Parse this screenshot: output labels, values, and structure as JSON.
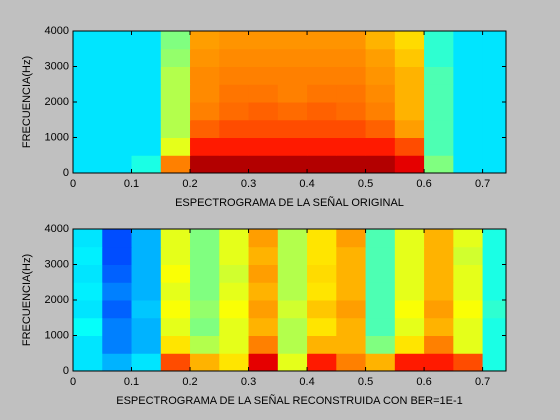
{
  "chart_data": [
    {
      "type": "heatmap",
      "xlabel": "ESPECTROGRAMA DE LA SEÑAL ORIGINAL",
      "ylabel": "FRECUENCIA(Hz)",
      "colormap": "jet",
      "clim": [
        0,
        1
      ],
      "xbins": [
        0,
        0.05,
        0.1,
        0.15,
        0.2,
        0.25,
        0.3,
        0.35,
        0.4,
        0.45,
        0.5,
        0.55,
        0.6,
        0.65,
        0.7,
        0.74
      ],
      "ybins": [
        0,
        500,
        1000,
        1500,
        2000,
        2500,
        3000,
        3500,
        4000
      ],
      "values": [
        [
          0.35,
          0.35,
          0.4,
          0.75,
          0.95,
          0.95,
          0.95,
          0.95,
          0.95,
          0.95,
          0.95,
          0.9,
          0.5,
          0.35,
          0.35
        ],
        [
          0.35,
          0.35,
          0.35,
          0.6,
          0.85,
          0.85,
          0.85,
          0.85,
          0.85,
          0.85,
          0.85,
          0.8,
          0.45,
          0.35,
          0.35
        ],
        [
          0.35,
          0.35,
          0.35,
          0.55,
          0.78,
          0.8,
          0.8,
          0.8,
          0.8,
          0.8,
          0.78,
          0.72,
          0.45,
          0.35,
          0.35
        ],
        [
          0.35,
          0.35,
          0.35,
          0.55,
          0.75,
          0.77,
          0.78,
          0.77,
          0.78,
          0.77,
          0.75,
          0.7,
          0.45,
          0.35,
          0.35
        ],
        [
          0.35,
          0.35,
          0.35,
          0.55,
          0.74,
          0.76,
          0.76,
          0.75,
          0.76,
          0.76,
          0.74,
          0.7,
          0.45,
          0.35,
          0.35
        ],
        [
          0.35,
          0.35,
          0.35,
          0.55,
          0.74,
          0.75,
          0.75,
          0.75,
          0.75,
          0.75,
          0.73,
          0.7,
          0.45,
          0.35,
          0.35
        ],
        [
          0.35,
          0.35,
          0.35,
          0.52,
          0.73,
          0.74,
          0.74,
          0.74,
          0.74,
          0.74,
          0.72,
          0.68,
          0.42,
          0.35,
          0.35
        ],
        [
          0.35,
          0.35,
          0.35,
          0.5,
          0.72,
          0.73,
          0.73,
          0.73,
          0.73,
          0.73,
          0.7,
          0.66,
          0.42,
          0.35,
          0.35
        ]
      ],
      "xlim": [
        0,
        0.74
      ],
      "ylim": [
        0,
        4000
      ],
      "xticks": [
        0,
        0.1,
        0.2,
        0.3,
        0.4,
        0.5,
        0.6,
        0.7
      ],
      "yticks": [
        0,
        1000,
        2000,
        3000,
        4000
      ]
    },
    {
      "type": "heatmap",
      "xlabel": "ESPECTROGRAMA DE LA SEÑAL RECONSTRUIDA CON BER=1E-1",
      "ylabel": "FRECUENCIA(Hz)",
      "colormap": "jet",
      "clim": [
        0,
        1
      ],
      "xbins": [
        0,
        0.05,
        0.1,
        0.15,
        0.2,
        0.25,
        0.3,
        0.35,
        0.4,
        0.45,
        0.5,
        0.55,
        0.6,
        0.65,
        0.7,
        0.74
      ],
      "ybins": [
        0,
        500,
        1000,
        1500,
        2000,
        2500,
        3000,
        3500,
        4000
      ],
      "values": [
        [
          0.35,
          0.3,
          0.35,
          0.8,
          0.7,
          0.65,
          0.9,
          0.6,
          0.85,
          0.75,
          0.7,
          0.85,
          0.85,
          0.8,
          0.4
        ],
        [
          0.35,
          0.25,
          0.3,
          0.65,
          0.55,
          0.6,
          0.75,
          0.55,
          0.7,
          0.7,
          0.5,
          0.65,
          0.75,
          0.6,
          0.4
        ],
        [
          0.38,
          0.25,
          0.3,
          0.6,
          0.5,
          0.6,
          0.7,
          0.55,
          0.65,
          0.7,
          0.45,
          0.6,
          0.7,
          0.6,
          0.4
        ],
        [
          0.35,
          0.22,
          0.32,
          0.62,
          0.52,
          0.62,
          0.72,
          0.58,
          0.68,
          0.72,
          0.45,
          0.62,
          0.72,
          0.62,
          0.42
        ],
        [
          0.36,
          0.25,
          0.3,
          0.6,
          0.5,
          0.6,
          0.7,
          0.55,
          0.65,
          0.7,
          0.45,
          0.6,
          0.7,
          0.6,
          0.4
        ],
        [
          0.35,
          0.22,
          0.3,
          0.62,
          0.5,
          0.58,
          0.72,
          0.55,
          0.66,
          0.7,
          0.45,
          0.6,
          0.7,
          0.6,
          0.4
        ],
        [
          0.36,
          0.2,
          0.3,
          0.6,
          0.5,
          0.6,
          0.7,
          0.55,
          0.65,
          0.7,
          0.45,
          0.6,
          0.7,
          0.58,
          0.4
        ],
        [
          0.35,
          0.2,
          0.3,
          0.6,
          0.5,
          0.6,
          0.72,
          0.55,
          0.65,
          0.72,
          0.45,
          0.6,
          0.7,
          0.6,
          0.4
        ]
      ],
      "xlim": [
        0,
        0.74
      ],
      "ylim": [
        0,
        4000
      ],
      "xticks": [
        0,
        0.1,
        0.2,
        0.3,
        0.4,
        0.5,
        0.6,
        0.7
      ],
      "yticks": [
        0,
        1000,
        2000,
        3000,
        4000
      ]
    }
  ]
}
